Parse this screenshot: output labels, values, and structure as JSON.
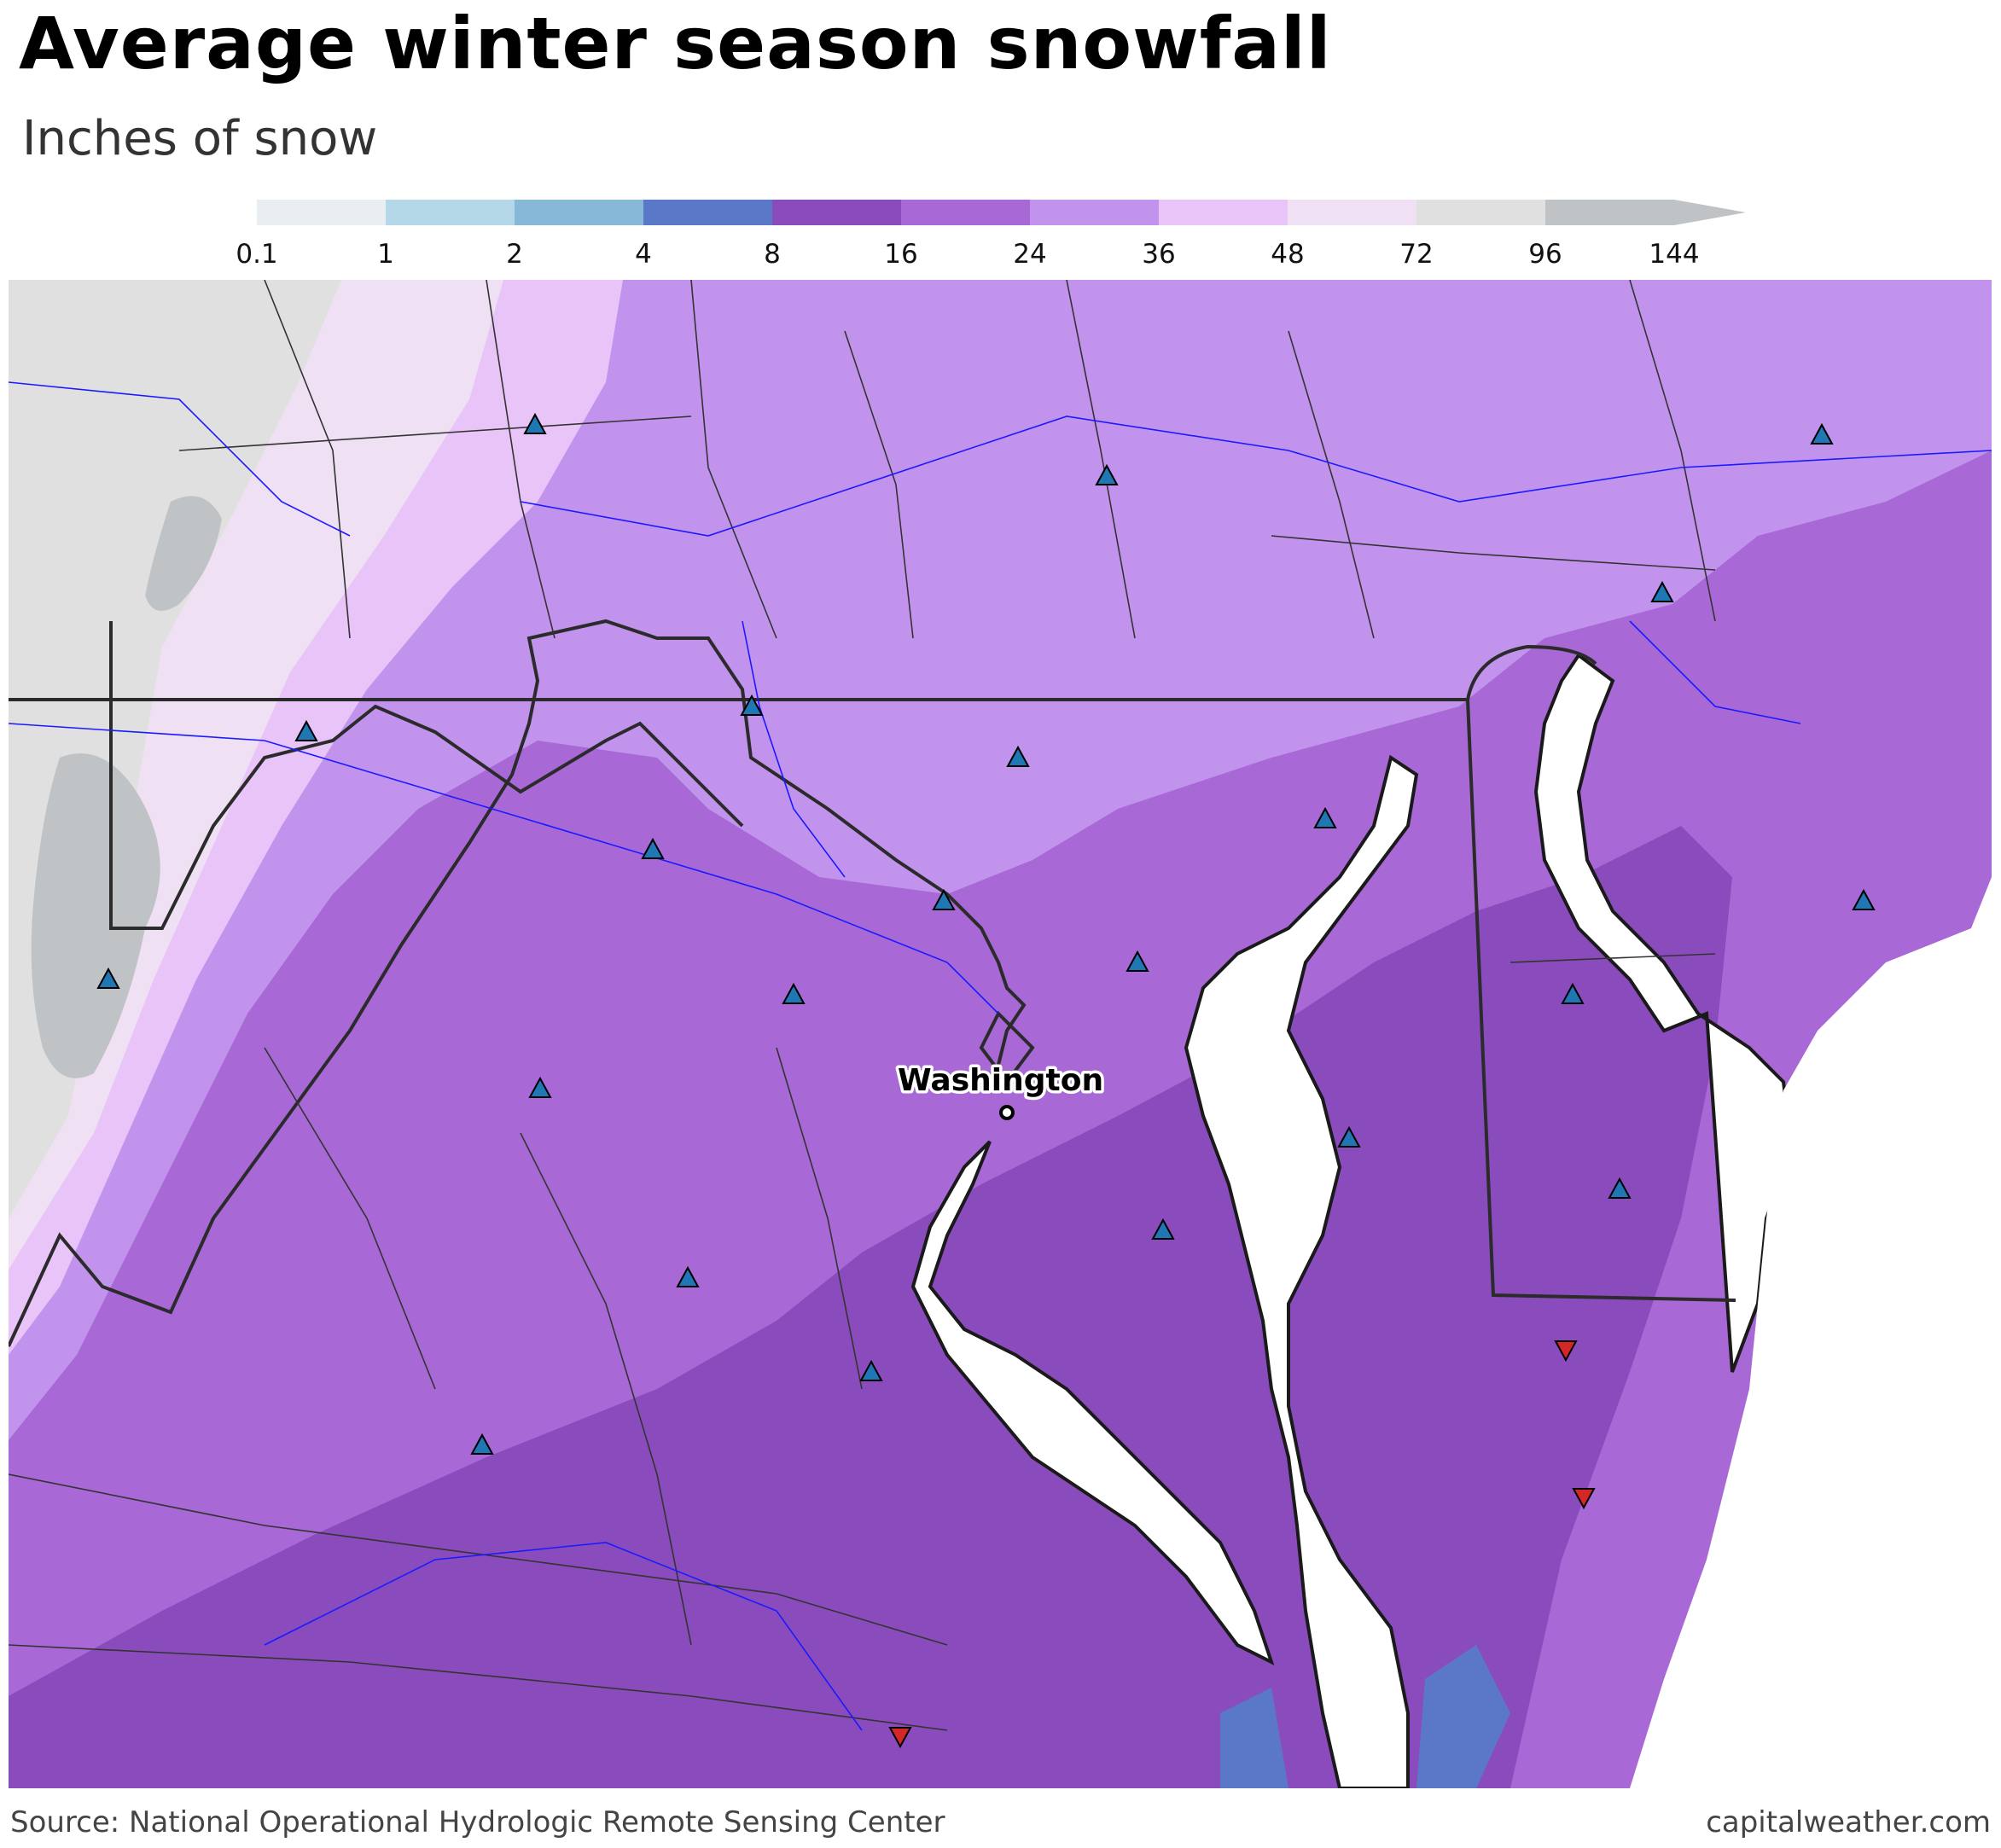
{
  "title": "Average winter season snowfall",
  "subtitle": "Inches of snow",
  "legend": {
    "ticks": [
      "0.1",
      "1",
      "2",
      "4",
      "8",
      "16",
      "24",
      "36",
      "48",
      "72",
      "96",
      "144"
    ],
    "colors": [
      "#e8eef2",
      "#b5d8e8",
      "#86b8d8",
      "#5b78c8",
      "#8a4cbc",
      "#a868d6",
      "#c293ec",
      "#e8c4f8",
      "#efe0f4",
      "#e0e0e0",
      "#c0c3c5"
    ],
    "arrow_color": "#c0c3c5"
  },
  "map": {
    "city": "Washington",
    "water_color": "#ffffff",
    "state_border_color": "#2b2b2b",
    "county_border_color": "#333333",
    "river_color": "#1a1aff",
    "station_up_color": "#1f77b4",
    "station_down_color": "#d62728"
  },
  "footer": {
    "source": "Source: National Operational Hydrologic Remote Sensing Center",
    "credit": "capitalweather.com"
  }
}
